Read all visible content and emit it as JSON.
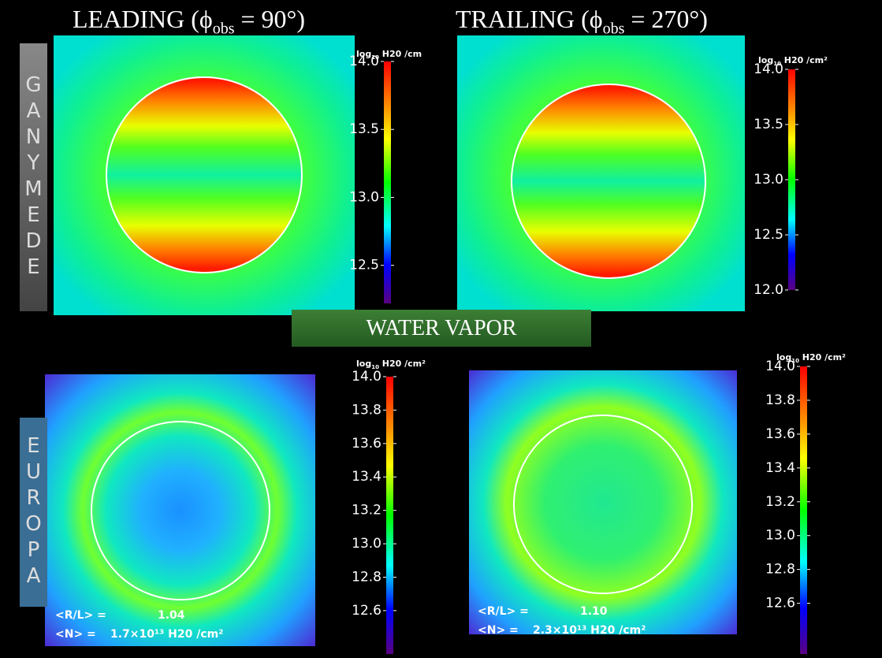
{
  "headers": [
    {
      "prefix": "LEADING (ϕ",
      "sub": "obs",
      "suffix": " = 90°)"
    },
    {
      "prefix": "TRAILING (ϕ",
      "sub": "obs",
      "suffix": " = 270°)"
    }
  ],
  "rows": [
    "GANYMEDE",
    "EUROPA"
  ],
  "center_label": "WATER VAPOR",
  "panels": [
    {
      "colorbar_label": {
        "base": "log",
        "sub": "10",
        "rest": " H20 /cm"
      },
      "ylim": [
        12.22,
        14.0
      ],
      "yticks": [
        {
          "value": 14,
          "label": "14.0"
        },
        13.5,
        {
          "value": 13,
          "label": "13.0"
        },
        12.5
      ]
    },
    {
      "colorbar_label": {
        "base": "log",
        "sub": "10",
        "rest": " H20 /cm²"
      },
      "ylim": [
        12.0,
        14.0
      ],
      "yticks": [
        {
          "value": 14,
          "label": "14.0"
        },
        13.5,
        {
          "value": 13,
          "label": "13.0"
        },
        12.5,
        {
          "value": 12,
          "label": "12.0"
        }
      ]
    },
    {
      "colorbar_label": {
        "base": "log",
        "sub": "10",
        "rest": " H20 /cm²"
      },
      "ylim": [
        12.34,
        14.0
      ],
      "yticks": [
        {
          "value": 14,
          "label": "14.0"
        },
        13.8,
        13.6,
        13.4,
        13.2,
        {
          "value": 13,
          "label": "13.0"
        },
        12.8,
        12.6
      ],
      "annotations": {
        "rl_label": "<R/L> =",
        "rl_value": "1.04",
        "n_label": "<N> =",
        "n_value": "1.7×10¹³ H20 /cm²"
      }
    },
    {
      "colorbar_label": {
        "base": "log",
        "sub": "10",
        "rest": " H20 /cm²"
      },
      "ylim": [
        12.3,
        14.0
      ],
      "yticks": [
        {
          "value": 14,
          "label": "14.0"
        },
        13.8,
        13.6,
        13.4,
        13.2,
        {
          "value": 13,
          "label": "13.0"
        },
        12.8,
        12.6
      ],
      "annotations": {
        "rl_label": "<R/L> =",
        "rl_value": "1.10",
        "n_label": "<N> =",
        "n_value": "2.3×10¹³ H20 /cm²"
      }
    }
  ]
}
